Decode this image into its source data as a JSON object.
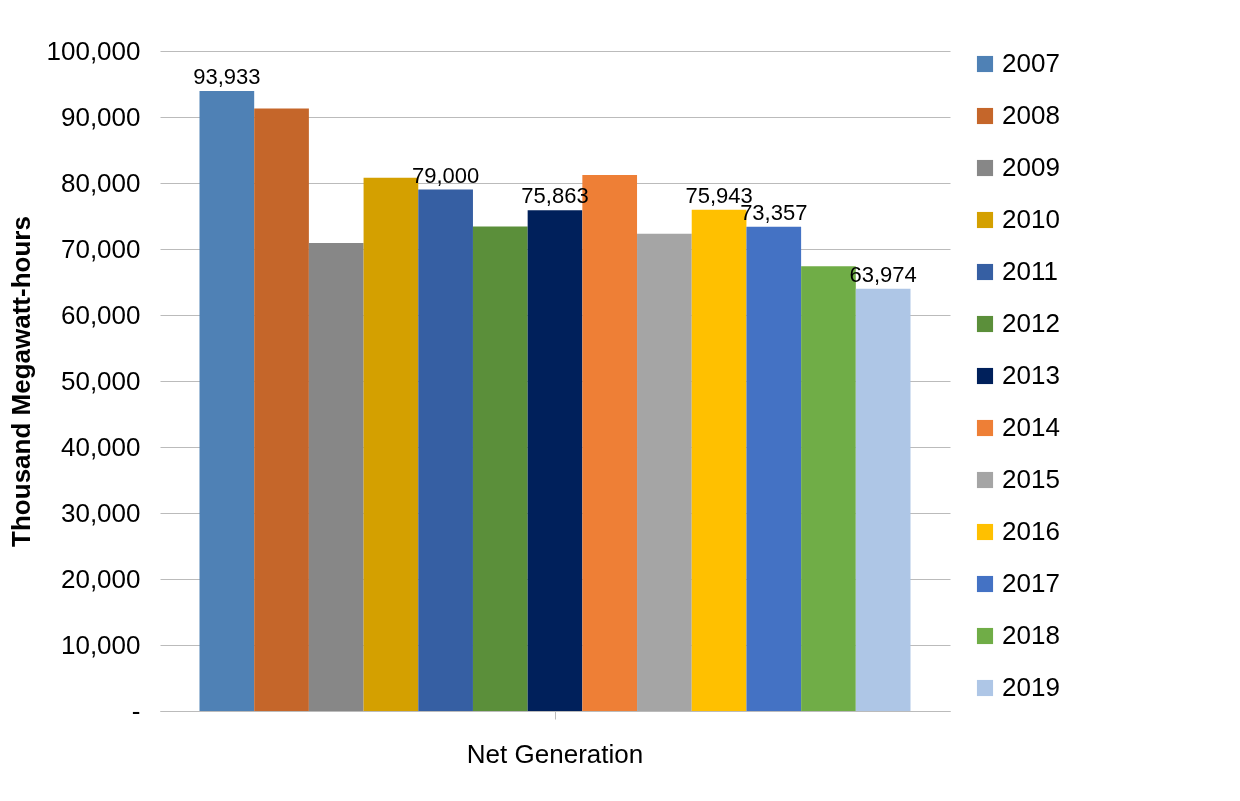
{
  "chart_data": {
    "type": "bar",
    "ylabel": "Thousand  Megawatt-hours",
    "categories": [
      "Net Generation"
    ],
    "ylim": [
      0,
      100000
    ],
    "yticks": [
      {
        "value": 0,
        "label": "-"
      },
      {
        "value": 10000,
        "label": "10,000"
      },
      {
        "value": 20000,
        "label": "20,000"
      },
      {
        "value": 30000,
        "label": "30,000"
      },
      {
        "value": 40000,
        "label": "40,000"
      },
      {
        "value": 50000,
        "label": "50,000"
      },
      {
        "value": 60000,
        "label": "60,000"
      },
      {
        "value": 70000,
        "label": "70,000"
      },
      {
        "value": 80000,
        "label": "80,000"
      },
      {
        "value": 90000,
        "label": "90,000"
      },
      {
        "value": 100000,
        "label": "100,000"
      }
    ],
    "grid": "y",
    "legend": "right",
    "series": [
      {
        "name": "2007",
        "color": "#4f81b5",
        "values": [
          93933
        ],
        "value_labels": [
          "93,933"
        ]
      },
      {
        "name": "2008",
        "color": "#c5662a",
        "values": [
          91300
        ],
        "value_labels": [
          null
        ]
      },
      {
        "name": "2009",
        "color": "#878787",
        "values": [
          70900
        ],
        "value_labels": [
          null
        ]
      },
      {
        "name": "2010",
        "color": "#d4a000",
        "values": [
          80800
        ],
        "value_labels": [
          null
        ]
      },
      {
        "name": "2011",
        "color": "#365fa3",
        "values": [
          79000
        ],
        "value_labels": [
          "79,000"
        ]
      },
      {
        "name": "2012",
        "color": "#5b8f3a",
        "values": [
          73400
        ],
        "value_labels": [
          null
        ]
      },
      {
        "name": "2013",
        "color": "#00205b",
        "values": [
          75863
        ],
        "value_labels": [
          "75,863"
        ]
      },
      {
        "name": "2014",
        "color": "#ee7f36",
        "values": [
          81200
        ],
        "value_labels": [
          null
        ]
      },
      {
        "name": "2015",
        "color": "#a5a5a5",
        "values": [
          72300
        ],
        "value_labels": [
          null
        ]
      },
      {
        "name": "2016",
        "color": "#ffc000",
        "values": [
          75943
        ],
        "value_labels": [
          "75,943"
        ]
      },
      {
        "name": "2017",
        "color": "#4472c4",
        "values": [
          73357
        ],
        "value_labels": [
          "73,357"
        ]
      },
      {
        "name": "2018",
        "color": "#70ad47",
        "values": [
          67400
        ],
        "value_labels": [
          null
        ]
      },
      {
        "name": "2019",
        "color": "#aec6e6",
        "values": [
          63974
        ],
        "value_labels": [
          "63,974"
        ]
      }
    ]
  }
}
